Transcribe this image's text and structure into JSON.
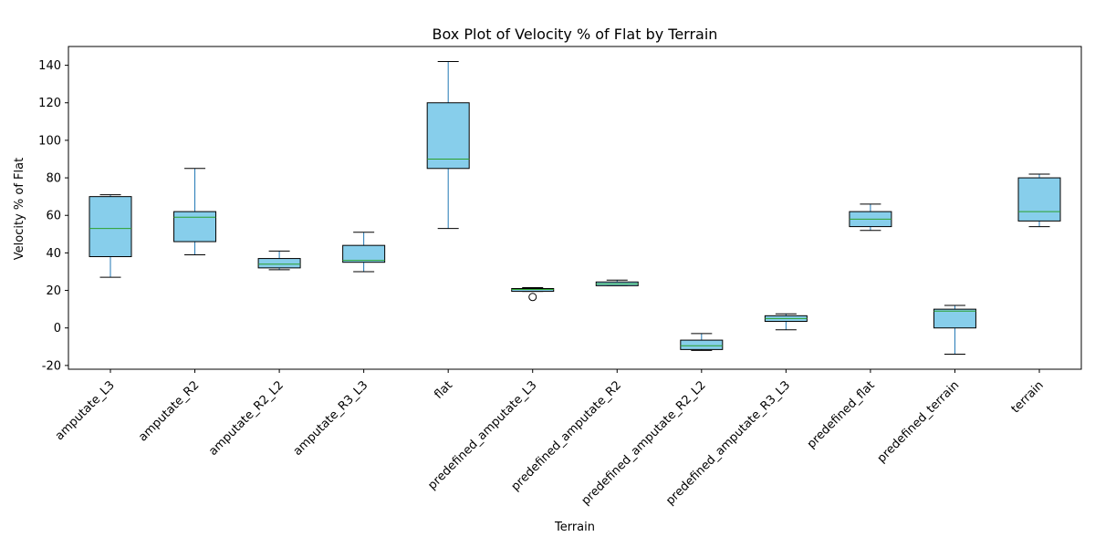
{
  "chart_data": {
    "type": "box",
    "title": "Box Plot of Velocity % of Flat by Terrain",
    "xlabel": "Terrain",
    "ylabel": "Velocity % of Flat",
    "ylim": [
      -22,
      150
    ],
    "yticks": [
      -20,
      0,
      20,
      40,
      60,
      80,
      100,
      120,
      140
    ],
    "grid": false,
    "colors": {
      "box_fill": "#87ceeb",
      "box_edge": "#000000",
      "whisker": "#1f77b4",
      "median": "#2ca02c"
    },
    "categories": [
      "amputate_L3",
      "amputate_R2",
      "amputate_R2_L2",
      "amputate_R3_L3",
      "flat",
      "predefined_amputate_L3",
      "predefined_amputate_R2",
      "predefined_amputate_R2_L2",
      "predefined_amputate_R3_L3",
      "predefined_flat",
      "predefined_terrain",
      "terrain"
    ],
    "boxes": [
      {
        "whislo": 27,
        "q1": 38,
        "med": 53,
        "q3": 70,
        "whishi": 71,
        "fliers": []
      },
      {
        "whislo": 39,
        "q1": 46,
        "med": 59,
        "q3": 62,
        "whishi": 85,
        "fliers": []
      },
      {
        "whislo": 31,
        "q1": 32,
        "med": 34,
        "q3": 37,
        "whishi": 41,
        "fliers": []
      },
      {
        "whislo": 30,
        "q1": 35,
        "med": 36,
        "q3": 44,
        "whishi": 51,
        "fliers": []
      },
      {
        "whislo": 53,
        "q1": 85,
        "med": 90,
        "q3": 120,
        "whishi": 142,
        "fliers": []
      },
      {
        "whislo": 19.5,
        "q1": 19.5,
        "med": 20.5,
        "q3": 21,
        "whishi": 21.5,
        "fliers": [
          16.5
        ]
      },
      {
        "whislo": 22.5,
        "q1": 22.5,
        "med": 23.5,
        "q3": 24.5,
        "whishi": 25.5,
        "fliers": []
      },
      {
        "whislo": -12,
        "q1": -11.5,
        "med": -9.5,
        "q3": -6.5,
        "whishi": -3,
        "fliers": []
      },
      {
        "whislo": -1,
        "q1": 3.5,
        "med": 5,
        "q3": 6.5,
        "whishi": 7.5,
        "fliers": []
      },
      {
        "whislo": 52,
        "q1": 54,
        "med": 58,
        "q3": 62,
        "whishi": 66,
        "fliers": []
      },
      {
        "whislo": -14,
        "q1": 0,
        "med": 9,
        "q3": 10,
        "whishi": 12,
        "fliers": []
      },
      {
        "whislo": 54,
        "q1": 57,
        "med": 62,
        "q3": 80,
        "whishi": 82,
        "fliers": []
      }
    ]
  }
}
